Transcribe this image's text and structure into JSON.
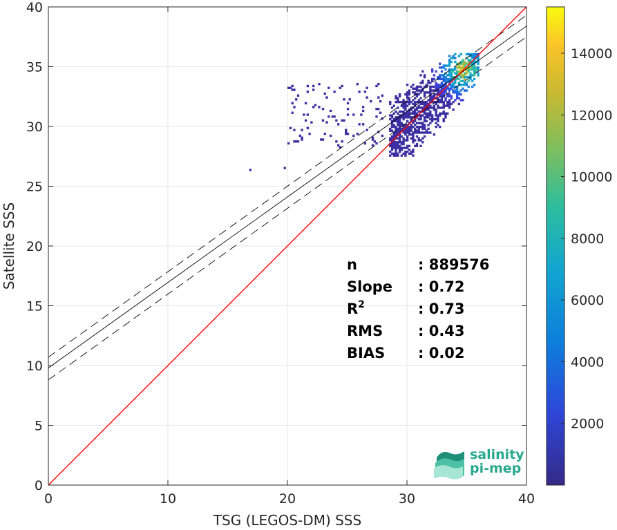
{
  "chart_data": {
    "type": "heatmap",
    "title": "",
    "xlabel": "TSG (LEGOS-DM) SSS",
    "ylabel": "Satellite SSS",
    "xlim": [
      0,
      40
    ],
    "ylim": [
      0,
      40
    ],
    "xticks": [
      0,
      10,
      20,
      30,
      40
    ],
    "yticks": [
      0,
      5,
      10,
      15,
      20,
      25,
      30,
      35,
      40
    ],
    "grid": true,
    "colorbar": {
      "range": [
        0,
        15500
      ],
      "ticks": [
        2000,
        4000,
        6000,
        8000,
        10000,
        12000,
        14000
      ],
      "colormap": "parula"
    },
    "one_to_one_line": {
      "x": [
        0,
        40
      ],
      "y": [
        0,
        40
      ],
      "color": "#ff0000"
    },
    "regression_line": {
      "x": [
        0,
        40
      ],
      "y": [
        9.8,
        38.4
      ],
      "color": "#000000"
    },
    "regression_band_upper": {
      "x": [
        0,
        40
      ],
      "y": [
        10.7,
        39.3
      ]
    },
    "regression_band_lower": {
      "x": [
        0,
        40
      ],
      "y": [
        8.8,
        37.5
      ]
    },
    "density_clusters": [
      {
        "x": [
          28.5,
          36
        ],
        "y": [
          27.5,
          36
        ],
        "level": "high",
        "peak": [
          34.7,
          34.7
        ]
      },
      {
        "x": [
          20,
          28
        ],
        "y": [
          28.2,
          33.5
        ],
        "level": "low"
      },
      {
        "x": [
          16,
          20
        ],
        "y": [
          26.3,
          26.6
        ],
        "level": "low"
      }
    ],
    "stats": [
      {
        "label": "n",
        "sup": "",
        "value": ": 889576"
      },
      {
        "label": "Slope",
        "sup": "",
        "value": ": 0.72"
      },
      {
        "label": "R",
        "sup": "2",
        "value": ": 0.73"
      },
      {
        "label": "RMS",
        "sup": "",
        "value": ": 0.43"
      },
      {
        "label": "BIAS",
        "sup": "",
        "value": ": 0.02"
      }
    ]
  },
  "logo": {
    "line1": "salinity",
    "line2": "pi-mep"
  }
}
